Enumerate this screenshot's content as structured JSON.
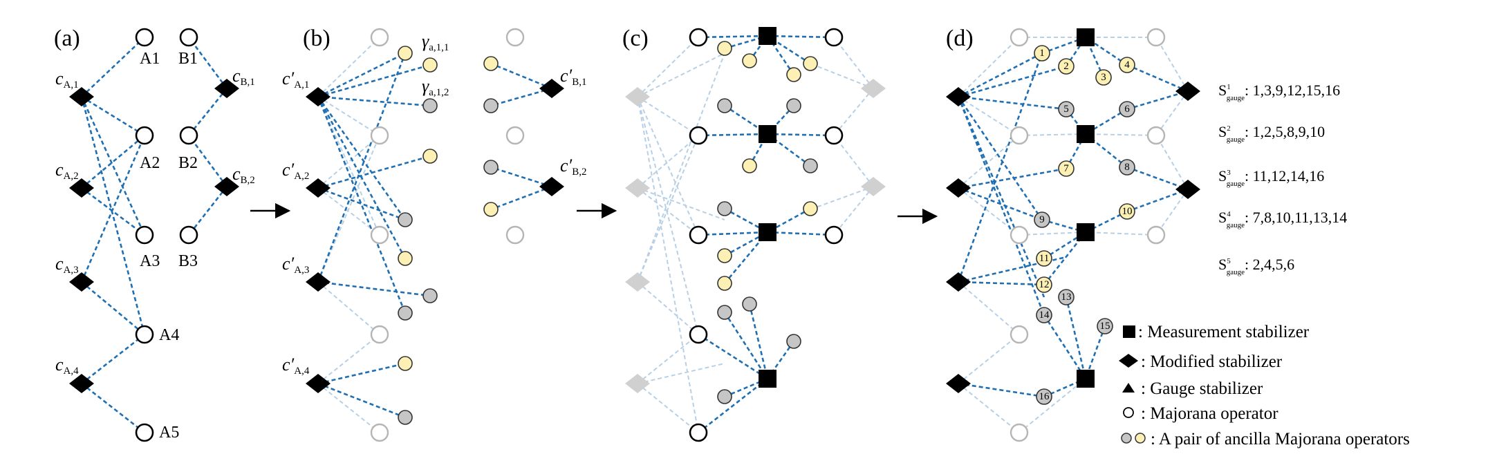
{
  "panels": [
    {
      "id": "a",
      "label": "(a)"
    },
    {
      "id": "b",
      "label": "(b)"
    },
    {
      "id": "c",
      "label": "(c)"
    },
    {
      "id": "d",
      "label": "(d)"
    }
  ],
  "panel_a": {
    "majorana_labels": [
      "A1",
      "A2",
      "A3",
      "A4",
      "A5",
      "B1",
      "B2",
      "B3"
    ],
    "stabilizers": [
      {
        "main": "c",
        "sub": "A,1"
      },
      {
        "main": "c",
        "sub": "A,2"
      },
      {
        "main": "c",
        "sub": "A,3"
      },
      {
        "main": "c",
        "sub": "A,4"
      },
      {
        "main": "c",
        "sub": "B,1"
      },
      {
        "main": "c",
        "sub": "B,2"
      }
    ]
  },
  "panel_b": {
    "stabilizers": [
      {
        "main": "c′",
        "sub": "A,1"
      },
      {
        "main": "c′",
        "sub": "A,2"
      },
      {
        "main": "c′",
        "sub": "A,3"
      },
      {
        "main": "c′",
        "sub": "A,4"
      },
      {
        "main": "c′",
        "sub": "B,1"
      },
      {
        "main": "c′",
        "sub": "B,2"
      }
    ],
    "gamma_labels": [
      {
        "main": "γ",
        "sub": "a,1,1"
      },
      {
        "main": "γ",
        "sub": "a,1,2"
      }
    ]
  },
  "panel_d": {
    "ancilla_numbers": [
      "1",
      "2",
      "3",
      "4",
      "5",
      "6",
      "7",
      "8",
      "9",
      "10",
      "11",
      "12",
      "13",
      "14",
      "15",
      "16"
    ],
    "gauge_sets": [
      {
        "label": "S",
        "sup": "1",
        "sub": "gauge",
        "values": ": 1,3,9,12,15,16"
      },
      {
        "label": "S",
        "sup": "2",
        "sub": "gauge",
        "values": ": 1,2,5,8,9,10"
      },
      {
        "label": "S",
        "sup": "3",
        "sub": "gauge",
        "values": ": 11,12,14,16"
      },
      {
        "label": "S",
        "sup": "4",
        "sub": "gauge",
        "values": ": 7,8,10,11,13,14"
      },
      {
        "label": "S",
        "sup": "5",
        "sub": "gauge",
        "values": ": 2,4,5,6"
      }
    ],
    "legend": [
      {
        "symbol": "square",
        "text": ": Measurement stabilizer"
      },
      {
        "symbol": "diamond",
        "text": ": Modified stabilizer"
      },
      {
        "symbol": "triangle",
        "text": ": Gauge stabilizer"
      },
      {
        "symbol": "circle",
        "text": ": Majorana operator"
      },
      {
        "symbol": "ancilla-pair",
        "text": ": A pair of ancilla Majorana operators"
      }
    ]
  },
  "colors": {
    "edge": "#1f6fb2",
    "edge_faded": "#b7d0e6",
    "node_faded": "#b5b5b5",
    "ancilla_grey": "#c6c6c6",
    "ancilla_yellow": "#fdf0b4",
    "stroke": "#000000"
  }
}
